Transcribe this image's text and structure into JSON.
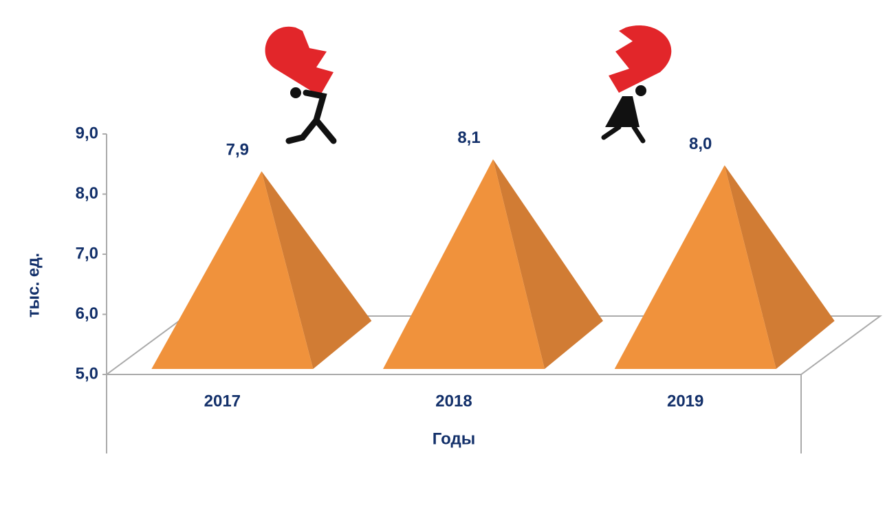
{
  "chart_data": {
    "type": "pyramid",
    "categories": [
      "2017",
      "2018",
      "2019"
    ],
    "values": [
      7.9,
      8.1,
      8.0
    ],
    "value_labels": [
      "7,9",
      "8,1",
      "8,0"
    ],
    "color": "#f0923c",
    "side_color": "#d17c34",
    "ylim": [
      5,
      9
    ],
    "yticks": [
      {
        "value": 5,
        "label": "5,0"
      },
      {
        "value": 6,
        "label": "6,0"
      },
      {
        "value": 7,
        "label": "7,0"
      },
      {
        "value": 8,
        "label": "8,0"
      },
      {
        "value": 9,
        "label": "9,0"
      }
    ],
    "y_label": "тыс. ед.",
    "x_label": "Годы"
  }
}
